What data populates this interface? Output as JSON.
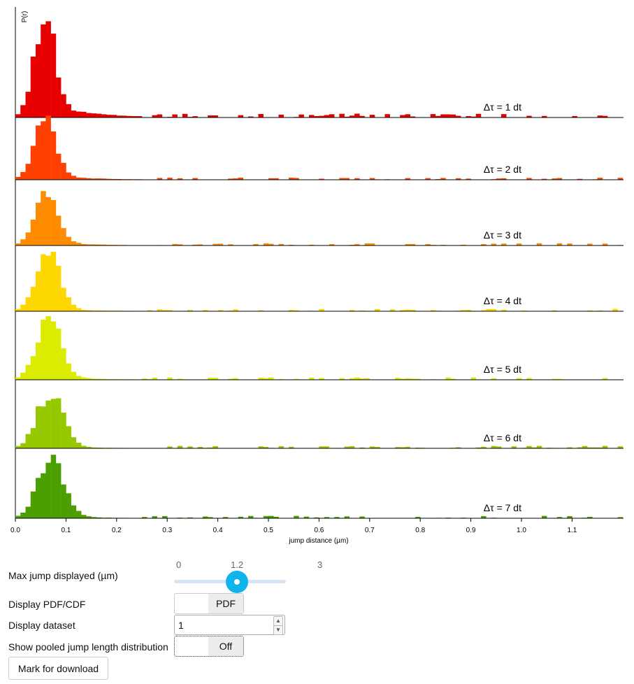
{
  "chart_data": {
    "type": "bar",
    "subtype": "stacked-histogram-panels",
    "ylabel": "P(r)",
    "xlabel": "jump distance (µm)",
    "xlim": [
      0,
      1.2
    ],
    "xticks": [
      "0.0",
      "0.1",
      "0.2",
      "0.3",
      "0.4",
      "0.5",
      "0.6",
      "0.7",
      "0.8",
      "0.9",
      "1.0",
      "1.1"
    ],
    "bin_width": 0.01,
    "panels": [
      {
        "label": "Δτ = 1 dt",
        "color": "#e60000",
        "peak": 0.056,
        "sigma": 0.02,
        "tail": 0.14,
        "peak_height": 0.3
      },
      {
        "label": "Δτ = 2 dt",
        "color": "#ff4000",
        "peak": 0.058,
        "sigma": 0.021,
        "tail": 0.08,
        "peak_height": 0.33
      },
      {
        "label": "Δτ = 3 dt",
        "color": "#ff8c00",
        "peak": 0.062,
        "sigma": 0.022,
        "tail": 0.06,
        "peak_height": 0.29
      },
      {
        "label": "Δτ = 4 dt",
        "color": "#ffd700",
        "peak": 0.064,
        "sigma": 0.023,
        "tail": 0.05,
        "peak_height": 0.3
      },
      {
        "label": "Δτ = 5 dt",
        "color": "#dcec00",
        "peak": 0.066,
        "sigma": 0.024,
        "tail": 0.05,
        "peak_height": 0.3
      },
      {
        "label": "Δτ = 6 dt",
        "color": "#96c800",
        "peak": 0.068,
        "sigma": 0.025,
        "tail": 0.04,
        "peak_height": 0.28
      },
      {
        "label": "Δτ = 7 dt",
        "color": "#4c9f00",
        "peak": 0.07,
        "sigma": 0.026,
        "tail": 0.04,
        "peak_height": 0.29
      }
    ]
  },
  "controls": {
    "max_jump": {
      "label": "Max jump displayed (µm)",
      "min": "0",
      "value": "1.2",
      "max": "3"
    },
    "pdf_cdf": {
      "label": "Display PDF/CDF",
      "value": "PDF"
    },
    "dataset": {
      "label": "Display dataset",
      "value": "1"
    },
    "pooled": {
      "label": "Show pooled jump length distribution",
      "value": "Off"
    },
    "download_label": "Mark for download"
  },
  "icons": {
    "spin_up": "chevron-up-icon",
    "spin_down": "chevron-down-icon"
  }
}
